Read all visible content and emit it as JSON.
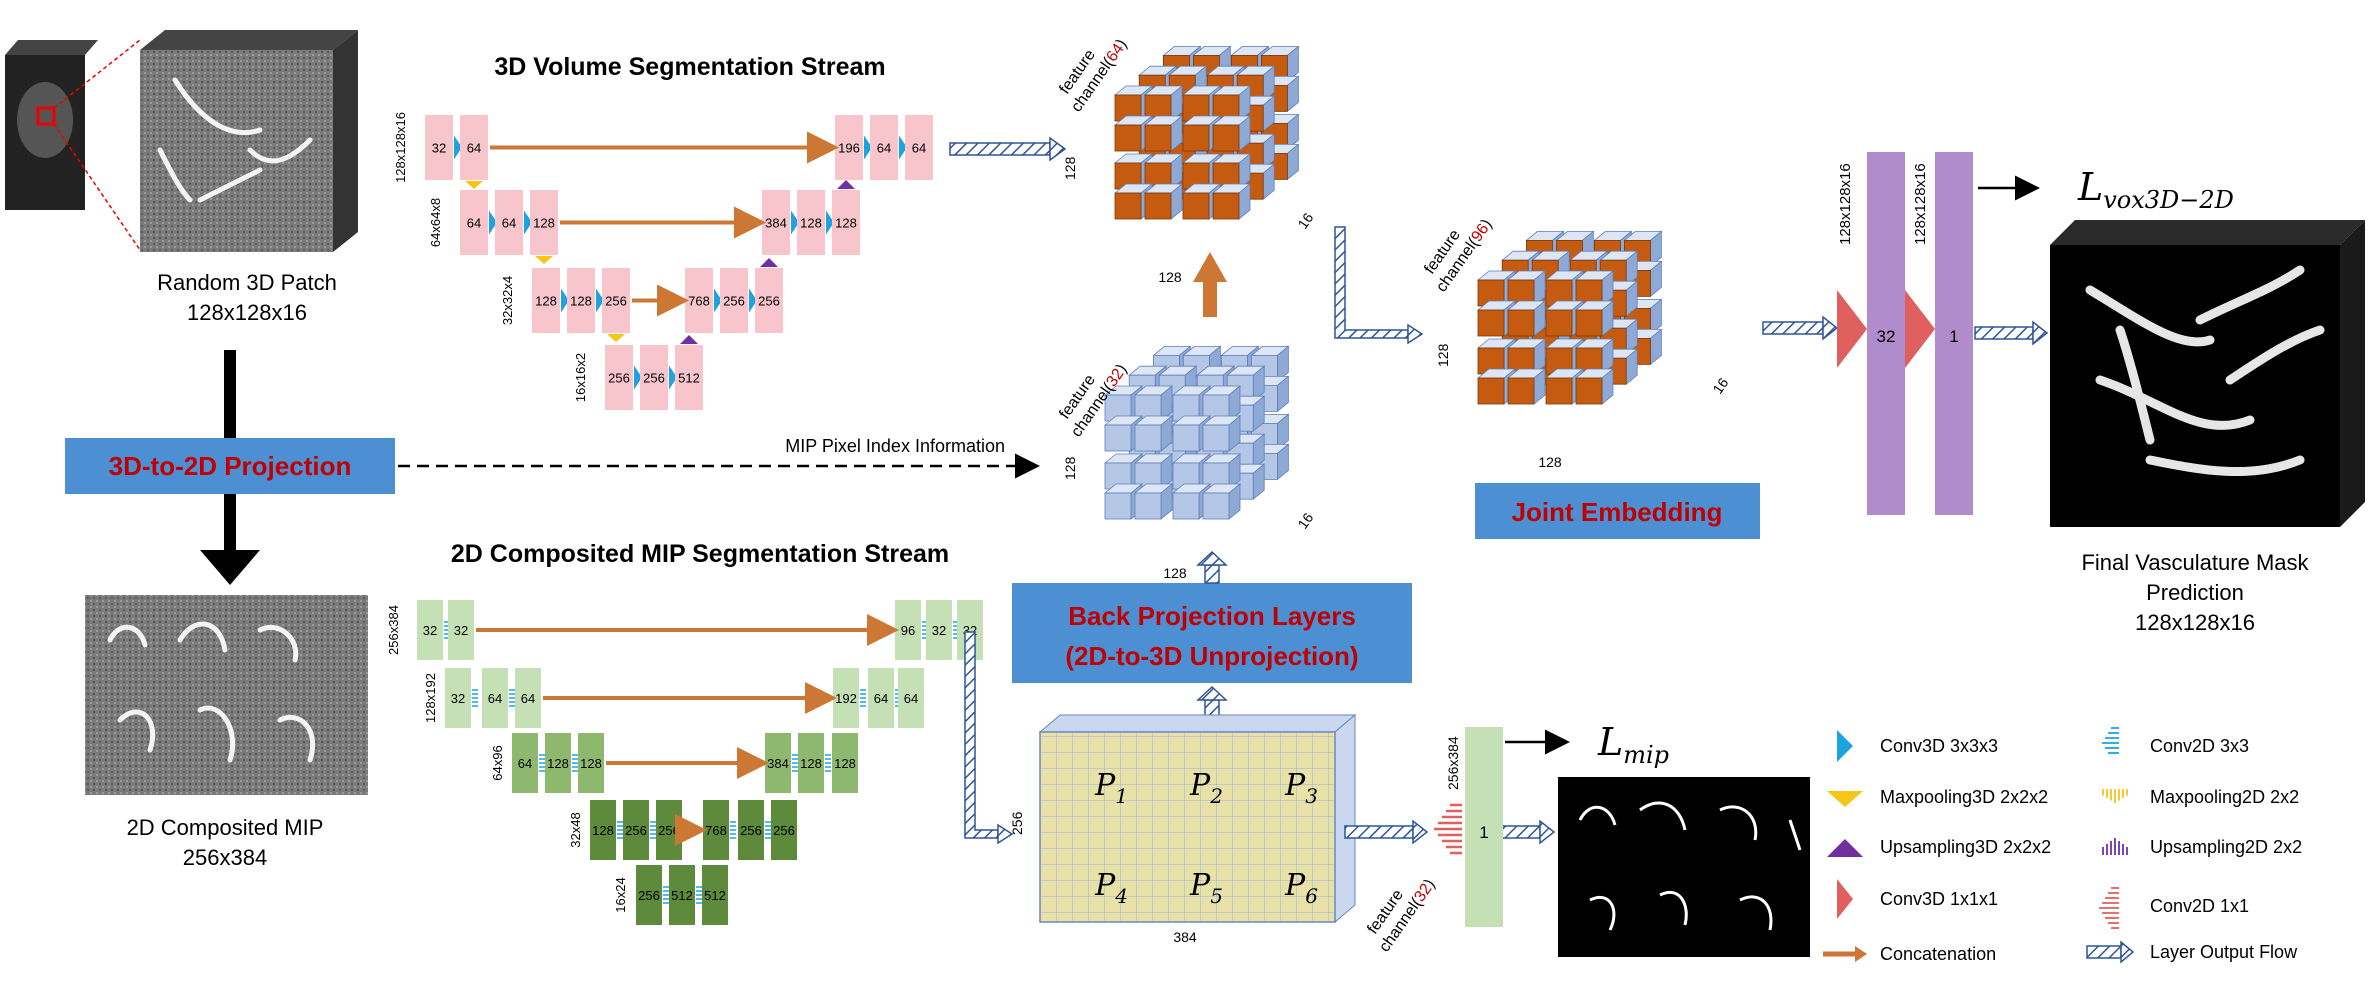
{
  "stream3d_title": "3D Volume Segmentation Stream",
  "stream2d_title": "2D Composited MIP Segmentation Stream",
  "patch_label": "Random 3D Patch",
  "patch_size": "128x128x16",
  "mip_label": "2D Composited MIP",
  "mip_size": "256x384",
  "projection_label": "3D-to-2D Projection",
  "mip_index_label": "MIP Pixel Index Information",
  "backproj_line1": "Back Projection Layers",
  "backproj_line2": "(2D-to-3D Unprojection)",
  "joint_label": "Joint Embedding",
  "final_label_1": "Final Vasculature Mask",
  "final_label_2": "Prediction",
  "final_size": "128x128x16",
  "loss_vox_main": "L",
  "loss_vox_sub": "vox3D−2D",
  "loss_mip_main": "L",
  "loss_mip_sub": "mip",
  "feature_word": "feature",
  "channel_word": "channel(",
  "channel_close": ")",
  "ch64": "64",
  "ch32a": "32",
  "ch96": "96",
  "ch32b": "32",
  "dim128": "128",
  "dim16": "16",
  "dim256": "256",
  "dim384": "384",
  "unet3d": {
    "levels": [
      "128x128x16",
      "64x64x8",
      "32x32x4",
      "16x16x2"
    ],
    "enc": [
      [
        "32",
        "64"
      ],
      [
        "64",
        "64",
        "128"
      ],
      [
        "128",
        "128",
        "256"
      ],
      [
        "256",
        "256",
        "512"
      ]
    ],
    "dec": [
      [
        "196",
        "64",
        "64"
      ],
      [
        "384",
        "128",
        "128"
      ],
      [
        "768",
        "256",
        "256"
      ]
    ]
  },
  "unet2d": {
    "levels": [
      "256x384",
      "128x192",
      "64x96",
      "32x48",
      "16x24"
    ],
    "enc": [
      [
        "32",
        "32"
      ],
      [
        "32",
        "64",
        "64"
      ],
      [
        "64",
        "128",
        "128"
      ],
      [
        "128",
        "256",
        "256"
      ],
      [
        "256",
        "512",
        "512"
      ]
    ],
    "dec": [
      [
        "96",
        "32",
        "32"
      ],
      [
        "192",
        "64",
        "64"
      ],
      [
        "384",
        "128",
        "128"
      ],
      [
        "768",
        "256",
        "256"
      ]
    ]
  },
  "final3d": {
    "level": "128x128x16",
    "ch1": "32",
    "ch2": "1"
  },
  "final2d": {
    "level": "256x384",
    "ch": "1"
  },
  "mip_grid": [
    "P",
    "1",
    "P",
    "2",
    "P",
    "3",
    "P",
    "4",
    "P",
    "5",
    "P",
    "6"
  ],
  "legend": {
    "conv3d": "Conv3D 3x3x3",
    "conv2d": "Conv2D 3x3",
    "maxpool3d": "Maxpooling3D  2x2x2",
    "maxpool2d": "Maxpooling2D  2x2",
    "upsample3d": "Upsampling3D 2x2x2",
    "upsample2d": "Upsampling2D 2x2",
    "conv3d1": "Conv3D 1x1x1",
    "conv2d1": "Conv2D 1x1",
    "concat": "Concatenation",
    "flow": "Layer Output Flow"
  },
  "colors": {
    "pink": "#f7c5cb",
    "lightgreen": "#c5e0b4",
    "midgreen": "#8fb86f",
    "darkgreen": "#5d8a3b",
    "orange": "#cc7733",
    "blue": "#1ca3e0",
    "purple": "#7030a0",
    "lilac": "#b18ccc",
    "yellow": "#f5c518",
    "coral": "#e06060",
    "banner": "#4d8fd3",
    "cube_orange": "#c55a11",
    "cube_blue": "#b4c7e7"
  }
}
